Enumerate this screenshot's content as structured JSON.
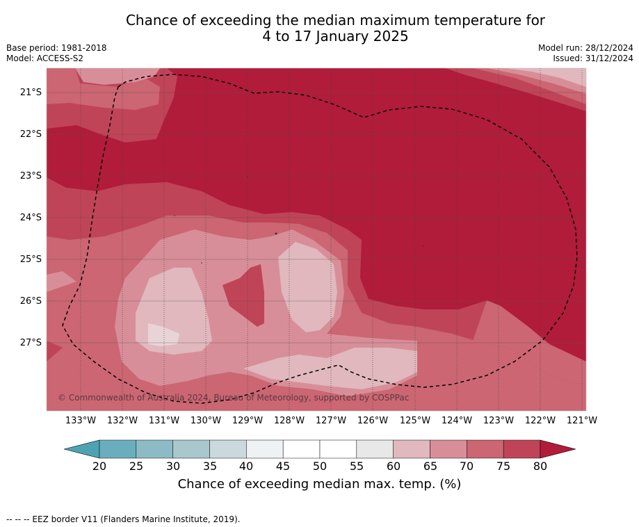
{
  "title_line1": "Chance of exceeding the median maximum temperature for",
  "title_line2": "4 to 17 January 2025",
  "base_period": "Base period: 1981-2018",
  "model": "Model: ACCESS-S2",
  "model_run": "Model run: 28/12/2024",
  "issued": "Issued: 31/12/2024",
  "latitudes": [
    "21°S",
    "22°S",
    "23°S",
    "24°S",
    "25°S",
    "26°S",
    "27°S"
  ],
  "longitudes": [
    "133°W",
    "132°W",
    "131°W",
    "130°W",
    "129°W",
    "128°W",
    "127°W",
    "126°W",
    "125°W",
    "124°W",
    "123°W",
    "122°W",
    "121°W"
  ],
  "copyright": "© Commonwealth of Australia 2024, Bureau of Meteorology, supported by COSPPac",
  "colorbar": {
    "ticks": [
      "20",
      "25",
      "30",
      "35",
      "40",
      "45",
      "50",
      "55",
      "60",
      "65",
      "70",
      "75",
      "80"
    ],
    "colors": [
      "#6aaebd",
      "#8cbbc6",
      "#a9c8ce",
      "#cad9dd",
      "#eef2f3",
      "#ffffff",
      "#ffffff",
      "#e8e8e8",
      "#e0b8be",
      "#d88e98",
      "#cb6672",
      "#c04457"
    ],
    "under_color": "#4ea3b3",
    "over_color": "#b01c3a",
    "label": "Chance of exceeding median max. temp. (%)"
  },
  "footnote": "--  --  -- EEZ border V11 (Flanders Marine Institute, 2019)."
}
